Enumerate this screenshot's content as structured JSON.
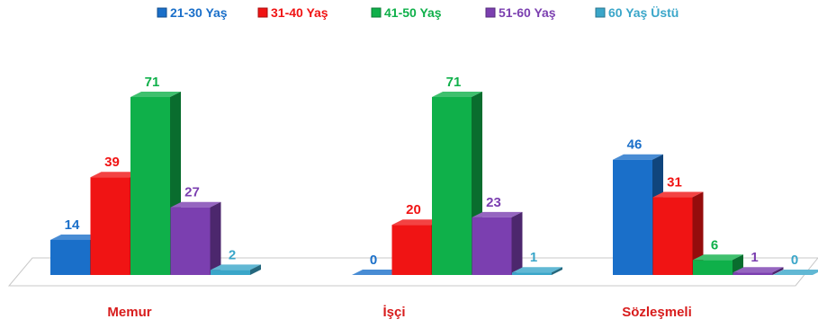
{
  "chart_data": {
    "type": "bar",
    "categories": [
      "Memur",
      "İşçi",
      "Sözleşmeli"
    ],
    "series": [
      {
        "name": "21-30 Yaş",
        "values": [
          14,
          0,
          46
        ],
        "color": "#1a6fc9"
      },
      {
        "name": "31-40 Yaş",
        "values": [
          39,
          20,
          31
        ],
        "color": "#f01414"
      },
      {
        "name": "41-50 Yaş",
        "values": [
          71,
          71,
          6
        ],
        "color": "#0fb04a"
      },
      {
        "name": "51-60 Yaş",
        "values": [
          27,
          23,
          1
        ],
        "color": "#7b3fb0"
      },
      {
        "name": "60 Yaş Üstü",
        "values": [
          2,
          1,
          0
        ],
        "color": "#3aa6c9"
      }
    ],
    "title": "",
    "xlabel": "",
    "ylabel": "",
    "ylim": [
      0,
      71
    ],
    "legend_position": "top",
    "grid": false,
    "three_d": true,
    "category_label_color": "#d81c1c"
  }
}
